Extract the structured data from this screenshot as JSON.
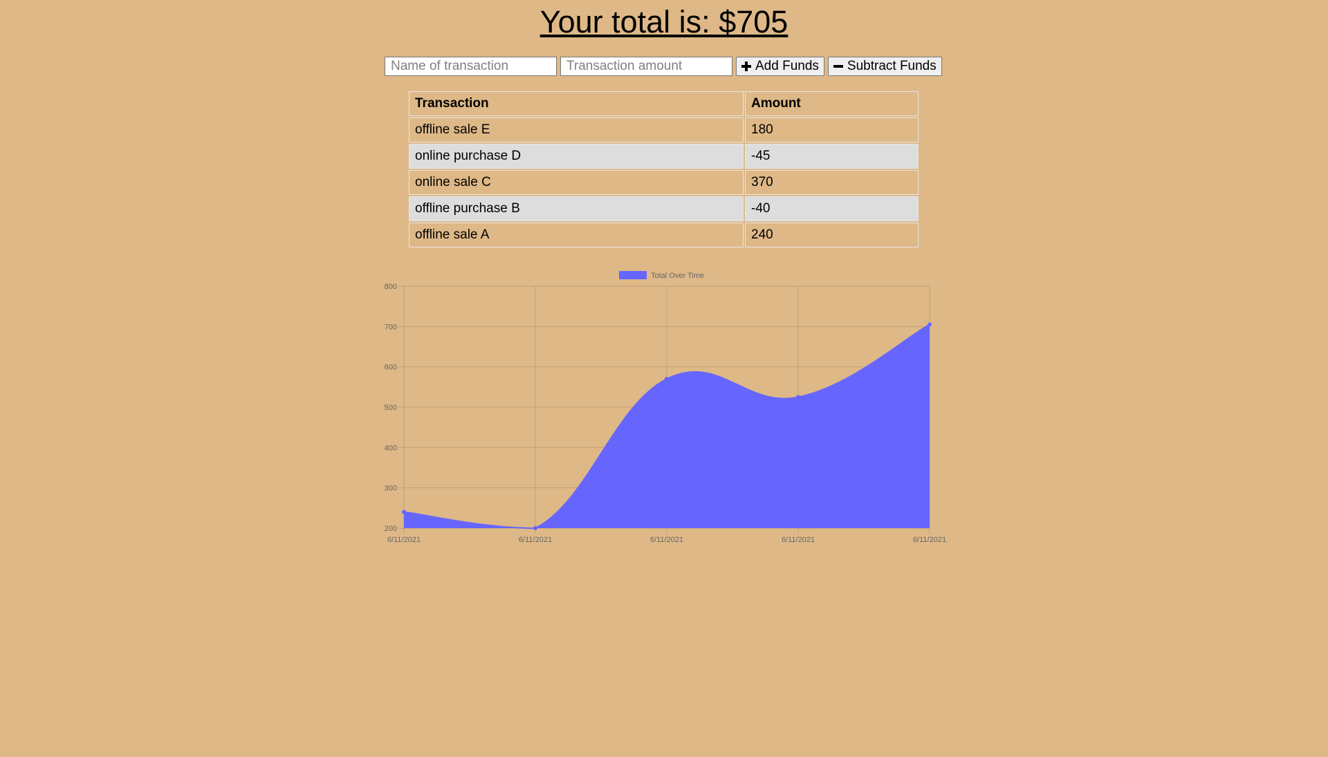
{
  "header": {
    "total_text": "Your total is: $705"
  },
  "form": {
    "name_placeholder": "Name of transaction",
    "amount_placeholder": "Transaction amount",
    "add_label": "Add Funds",
    "subtract_label": "Subtract Funds"
  },
  "table": {
    "headers": [
      "Transaction",
      "Amount"
    ],
    "rows": [
      {
        "name": "offline sale E",
        "amount": "180"
      },
      {
        "name": "online purchase D",
        "amount": "-45"
      },
      {
        "name": "online sale C",
        "amount": "370"
      },
      {
        "name": "offline purchase B",
        "amount": "-40"
      },
      {
        "name": "offline sale A",
        "amount": "240"
      }
    ]
  },
  "chart_data": {
    "type": "area",
    "legend": "Total Over Time",
    "legend_position": "top",
    "categories": [
      "6/11/2021",
      "6/11/2021",
      "6/11/2021",
      "6/11/2021",
      "6/11/2021"
    ],
    "series": [
      {
        "name": "Total Over Time",
        "values": [
          240,
          200,
          570,
          525,
          705
        ]
      }
    ],
    "ylim": [
      200,
      800
    ],
    "yticks": [
      800,
      700,
      600,
      500,
      400,
      300,
      200
    ],
    "grid": true,
    "fill_color": "#6666ff",
    "line_color": "#6666ff"
  }
}
